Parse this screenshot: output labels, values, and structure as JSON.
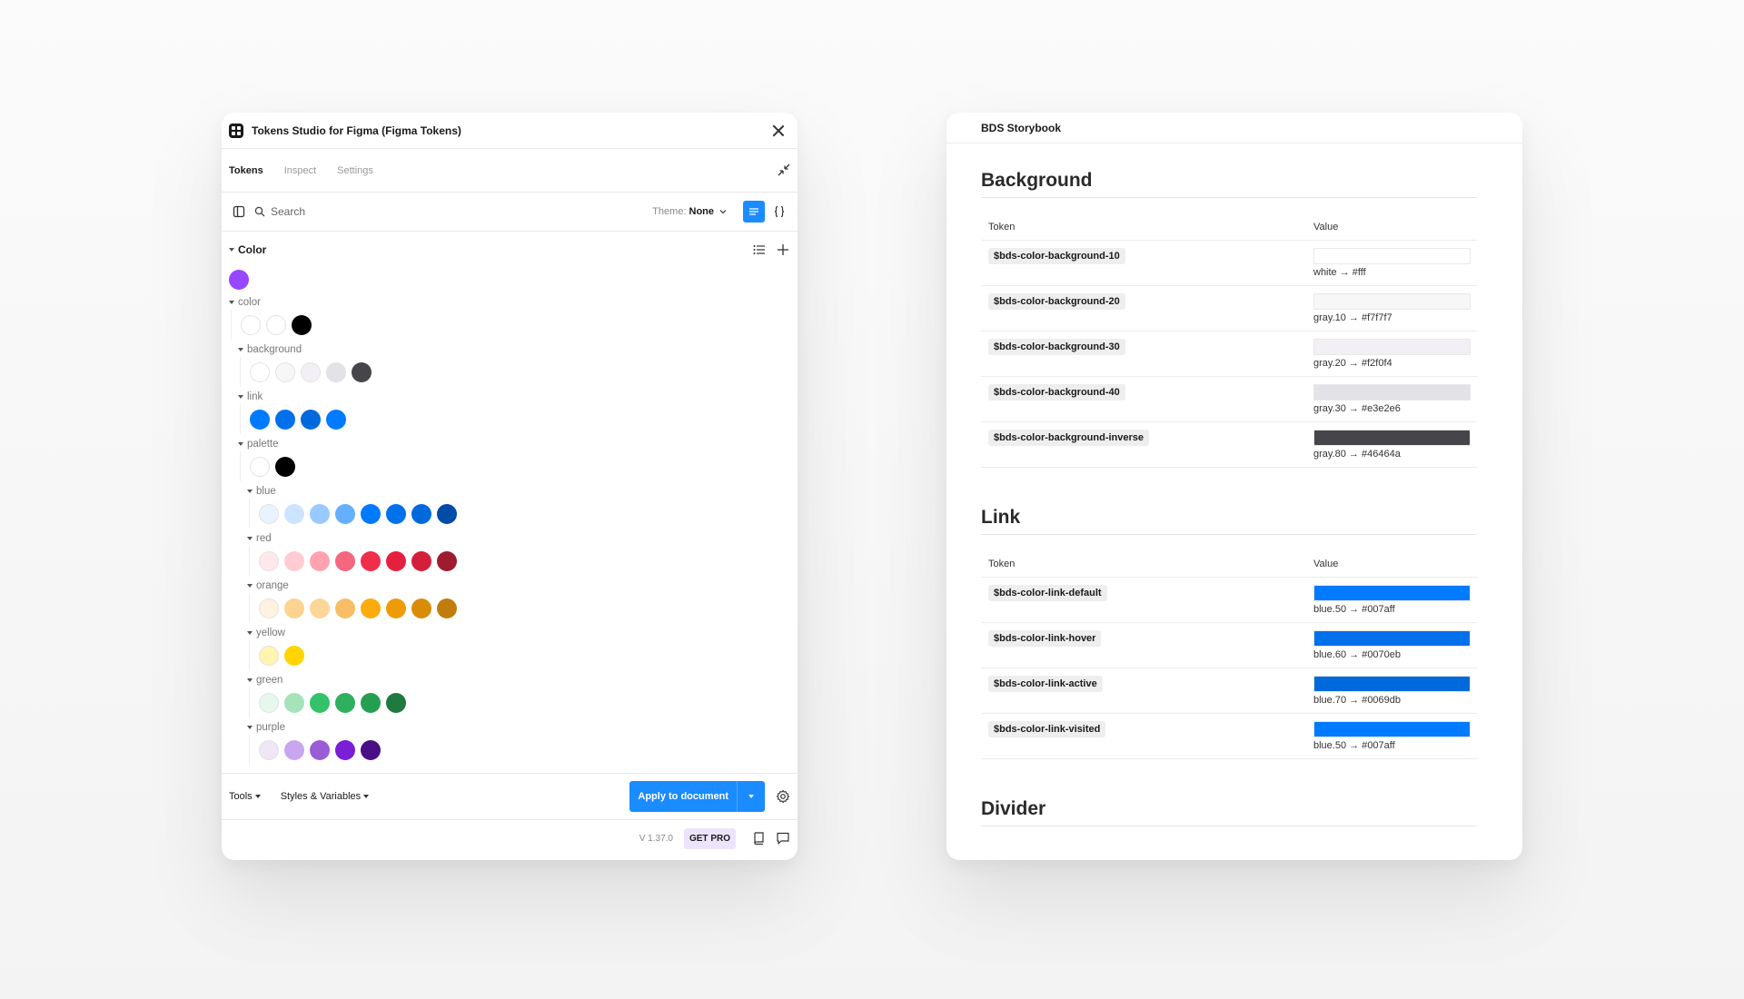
{
  "plugin": {
    "title": "Tokens Studio for Figma (Figma Tokens)",
    "tabs": [
      {
        "label": "Tokens",
        "active": true
      },
      {
        "label": "Inspect",
        "active": false
      },
      {
        "label": "Settings",
        "active": false
      }
    ],
    "search_placeholder": "Search",
    "theme_label": "Theme:",
    "theme_value": "None",
    "token_group": {
      "label": "Color",
      "accent": "#9747ff",
      "subgroups": {
        "color": {
          "name": "color",
          "swatches": [
            "#ffffff",
            "#ffffff",
            "#000000"
          ]
        },
        "background": {
          "name": "background",
          "swatches": [
            "#ffffff",
            "#f7f7f7",
            "#f2f0f4",
            "#e3e2e6",
            "#46464a"
          ]
        },
        "link": {
          "name": "link",
          "swatches": [
            "#007aff",
            "#0070eb",
            "#0069db",
            "#007aff"
          ]
        },
        "palette": {
          "name": "palette",
          "swatches": [
            "#ffffff",
            "#000000"
          ]
        },
        "blue": {
          "name": "blue",
          "swatches": [
            "#e8f3ff",
            "#cce4ff",
            "#99caff",
            "#66afff",
            "#007aff",
            "#0070eb",
            "#0069db",
            "#004ca6"
          ]
        },
        "red": {
          "name": "red",
          "swatches": [
            "#ffe8ec",
            "#ffccd4",
            "#ffa3b1",
            "#f5677e",
            "#f02d4b",
            "#e5203f",
            "#d41f3b",
            "#9e1c30"
          ]
        },
        "orange": {
          "name": "orange",
          "swatches": [
            "#fff2e0",
            "#fcd38f",
            "#fcd699",
            "#f8be65",
            "#fbab0b",
            "#ed9c07",
            "#d98c07",
            "#c27c0e"
          ]
        },
        "yellow": {
          "name": "yellow",
          "swatches": [
            "#fff4b0",
            "#ffd400"
          ]
        },
        "green": {
          "name": "green",
          "swatches": [
            "#e6f7ec",
            "#a6e3b9",
            "#33c26a",
            "#2eb05f",
            "#259e50",
            "#1f7a40"
          ]
        },
        "purple": {
          "name": "purple",
          "swatches": [
            "#efe6f8",
            "#c9a6f0",
            "#9b5cd6",
            "#7a1fd6",
            "#4a0f85"
          ]
        }
      }
    },
    "tools_label": "Tools",
    "styles_label": "Styles & Variables",
    "apply_label": "Apply to document",
    "version": "V 1.37.0",
    "pro_label": "GET PRO"
  },
  "storybook": {
    "title": "BDS Storybook",
    "col_token": "Token",
    "col_value": "Value",
    "sections": {
      "background": {
        "title": "Background",
        "rows": [
          {
            "token": "$bds-color-background-10",
            "value": "white → #fff",
            "color": "#ffffff"
          },
          {
            "token": "$bds-color-background-20",
            "value": "gray.10 → #f7f7f7",
            "color": "#f7f7f7"
          },
          {
            "token": "$bds-color-background-30",
            "value": "gray.20 → #f2f0f4",
            "color": "#f2f0f4"
          },
          {
            "token": "$bds-color-background-40",
            "value": "gray.30 → #e3e2e6",
            "color": "#e3e2e6"
          },
          {
            "token": "$bds-color-background-inverse",
            "value": "gray.80 → #46464a",
            "color": "#46464a"
          }
        ]
      },
      "link": {
        "title": "Link",
        "rows": [
          {
            "token": "$bds-color-link-default",
            "value": "blue.50 → #007aff",
            "color": "#007aff"
          },
          {
            "token": "$bds-color-link-hover",
            "value": "blue.60 → #0070eb",
            "color": "#0070eb"
          },
          {
            "token": "$bds-color-link-active",
            "value": "blue.70 → #0069db",
            "color": "#0069db"
          },
          {
            "token": "$bds-color-link-visited",
            "value": "blue.50 → #007aff",
            "color": "#007aff"
          }
        ]
      },
      "divider": {
        "title": "Divider"
      }
    }
  }
}
